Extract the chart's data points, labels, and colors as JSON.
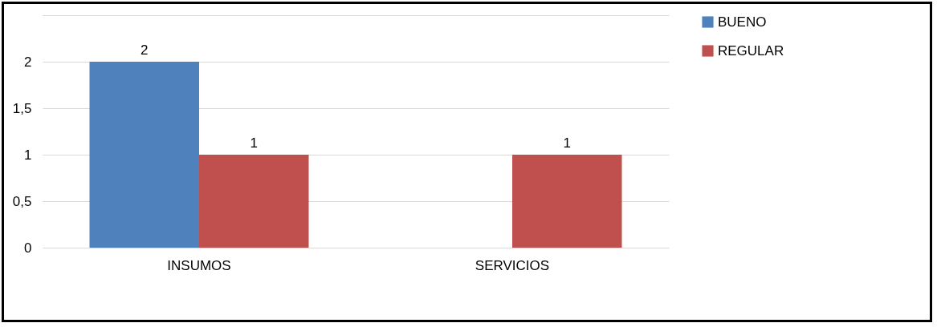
{
  "chart_data": {
    "type": "bar",
    "categories": [
      "INSUMOS",
      "SERVICIOS"
    ],
    "series": [
      {
        "name": "BUENO",
        "color": "#4f81bd",
        "values": [
          2,
          null
        ]
      },
      {
        "name": "REGULAR",
        "color": "#c0504d",
        "values": [
          1,
          1
        ]
      }
    ],
    "ylim": [
      0,
      2.5
    ],
    "yticks": [
      {
        "value": 0,
        "label": "0"
      },
      {
        "value": 0.5,
        "label": "0,5"
      },
      {
        "value": 1,
        "label": "1"
      },
      {
        "value": 1.5,
        "label": "1,5"
      },
      {
        "value": 2,
        "label": "2"
      },
      {
        "value": 2.5,
        "label": null
      }
    ],
    "grid": "y",
    "legend": "right",
    "data_labels": true
  }
}
